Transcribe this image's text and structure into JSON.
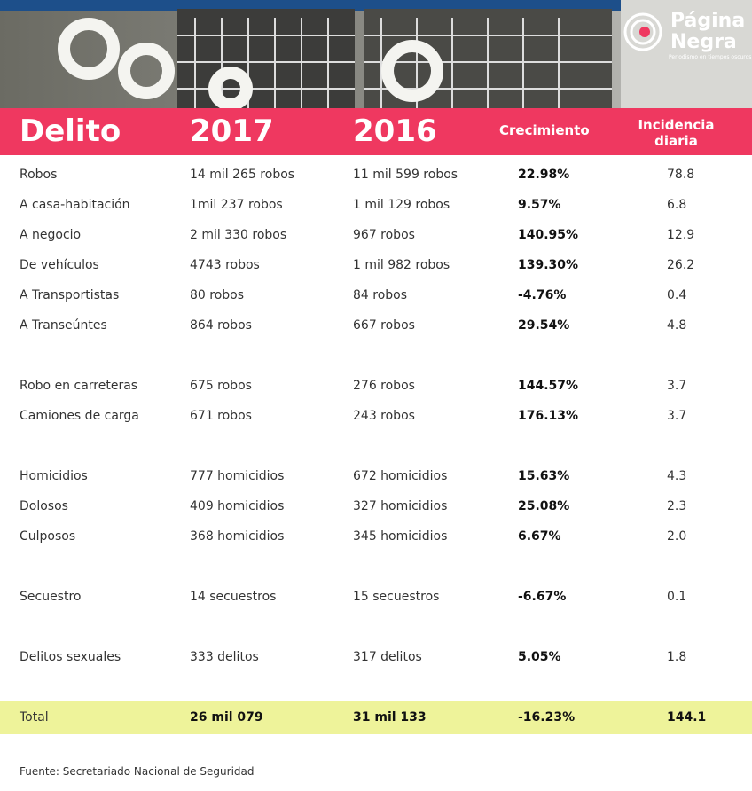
{
  "logo": {
    "name_top": "Página",
    "name_bottom": "Negra",
    "tagline": "Periodismo en tiempos oscuros"
  },
  "table": {
    "columns": [
      "Delito",
      "2017",
      "2016",
      "Crecimiento",
      "Incidencia diaria"
    ],
    "groups": [
      [
        [
          "Robos",
          "14 mil 265 robos",
          "11 mil 599 robos",
          "22.98%",
          "78.8"
        ],
        [
          "A casa-habitación",
          "1mil 237 robos",
          "1 mil 129 robos",
          "9.57%",
          "6.8"
        ],
        [
          "A negocio",
          "2 mil 330 robos",
          "967 robos",
          "140.95%",
          "12.9"
        ],
        [
          "De vehículos",
          "4743 robos",
          "1 mil 982 robos",
          "139.30%",
          "26.2"
        ],
        [
          "A Transportistas",
          "80 robos",
          "84 robos",
          "-4.76%",
          "0.4"
        ],
        [
          "A Transeúntes",
          "864 robos",
          "667 robos",
          "29.54%",
          "4.8"
        ]
      ],
      [
        [
          "Robo en carreteras",
          "675 robos",
          "276 robos",
          "144.57%",
          "3.7"
        ],
        [
          "Camiones de carga",
          "671 robos",
          "243 robos",
          "176.13%",
          "3.7"
        ]
      ],
      [
        [
          "Homicidios",
          "777 homicidios",
          "672 homicidios",
          "15.63%",
          "4.3"
        ],
        [
          "Dolosos",
          "409 homicidios",
          "327 homicidios",
          "25.08%",
          "2.3"
        ],
        [
          "Culposos",
          "368 homicidios",
          "345 homicidios",
          "6.67%",
          "2.0"
        ]
      ],
      [
        [
          "Secuestro",
          "14 secuestros",
          "15 secuestros",
          "-6.67%",
          "0.1"
        ]
      ],
      [
        [
          "Delitos sexuales",
          "333 delitos",
          "317 delitos",
          "5.05%",
          "1.8"
        ]
      ]
    ],
    "total": [
      "Total",
      "26 mil 079",
      "31 mil 133",
      "-16.23%",
      "144.1"
    ]
  },
  "source": "Fuente: Secretariado Nacional de Seguridad"
}
